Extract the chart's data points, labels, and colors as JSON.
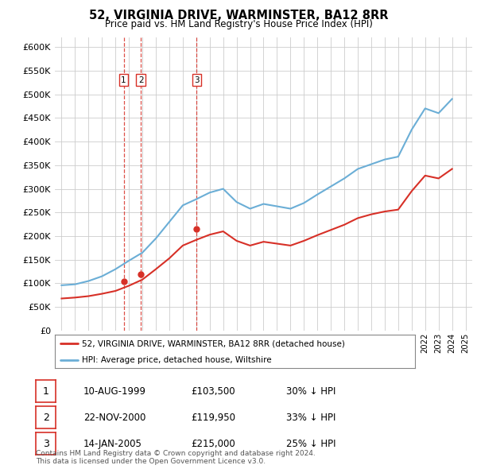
{
  "title": "52, VIRGINIA DRIVE, WARMINSTER, BA12 8RR",
  "subtitle": "Price paid vs. HM Land Registry's House Price Index (HPI)",
  "ylabel_ticks": [
    "£0",
    "£50K",
    "£100K",
    "£150K",
    "£200K",
    "£250K",
    "£300K",
    "£350K",
    "£400K",
    "£450K",
    "£500K",
    "£550K",
    "£600K"
  ],
  "ytick_values": [
    0,
    50000,
    100000,
    150000,
    200000,
    250000,
    300000,
    350000,
    400000,
    450000,
    500000,
    550000,
    600000
  ],
  "hpi_color": "#6baed6",
  "price_color": "#d73027",
  "vline_color": "#d73027",
  "purchases": [
    {
      "date_num": 1999.61,
      "price": 103500,
      "label": "1"
    },
    {
      "date_num": 2000.9,
      "price": 119950,
      "label": "2"
    },
    {
      "date_num": 2005.04,
      "price": 215000,
      "label": "3"
    }
  ],
  "legend_entries": [
    "52, VIRGINIA DRIVE, WARMINSTER, BA12 8RR (detached house)",
    "HPI: Average price, detached house, Wiltshire"
  ],
  "table_rows": [
    {
      "num": "1",
      "date": "10-AUG-1999",
      "price": "£103,500",
      "pct": "30% ↓ HPI"
    },
    {
      "num": "2",
      "date": "22-NOV-2000",
      "price": "£119,950",
      "pct": "33% ↓ HPI"
    },
    {
      "num": "3",
      "date": "14-JAN-2005",
      "price": "£215,000",
      "pct": "25% ↓ HPI"
    }
  ],
  "footnote": "Contains HM Land Registry data © Crown copyright and database right 2024.\nThis data is licensed under the Open Government Licence v3.0.",
  "bg_color": "#ffffff",
  "grid_color": "#cccccc",
  "xmin": 1994.5,
  "xmax": 2025.5,
  "hpi_years": [
    1995,
    1996,
    1997,
    1998,
    1999,
    2000,
    2001,
    2002,
    2003,
    2004,
    2005,
    2006,
    2007,
    2008,
    2009,
    2010,
    2011,
    2012,
    2013,
    2014,
    2015,
    2016,
    2017,
    2018,
    2019,
    2020,
    2021,
    2022,
    2023,
    2024
  ],
  "hpi_values": [
    96000,
    98000,
    105000,
    115000,
    130000,
    148000,
    165000,
    195000,
    230000,
    265000,
    278000,
    292000,
    300000,
    272000,
    258000,
    268000,
    263000,
    258000,
    270000,
    288000,
    305000,
    322000,
    342000,
    352000,
    362000,
    368000,
    425000,
    470000,
    460000,
    490000
  ],
  "price_years": [
    1995,
    1996,
    1997,
    1998,
    1999,
    2000,
    2001,
    2002,
    2003,
    2004,
    2005,
    2006,
    2007,
    2008,
    2009,
    2010,
    2011,
    2012,
    2013,
    2014,
    2015,
    2016,
    2017,
    2018,
    2019,
    2020,
    2021,
    2022,
    2023,
    2024
  ],
  "price_values": [
    68000,
    70000,
    73000,
    78000,
    84000,
    95000,
    108000,
    130000,
    153000,
    180000,
    192000,
    203000,
    210000,
    190000,
    180000,
    188000,
    184000,
    180000,
    190000,
    202000,
    213000,
    224000,
    238000,
    246000,
    252000,
    256000,
    295000,
    328000,
    322000,
    342000
  ]
}
